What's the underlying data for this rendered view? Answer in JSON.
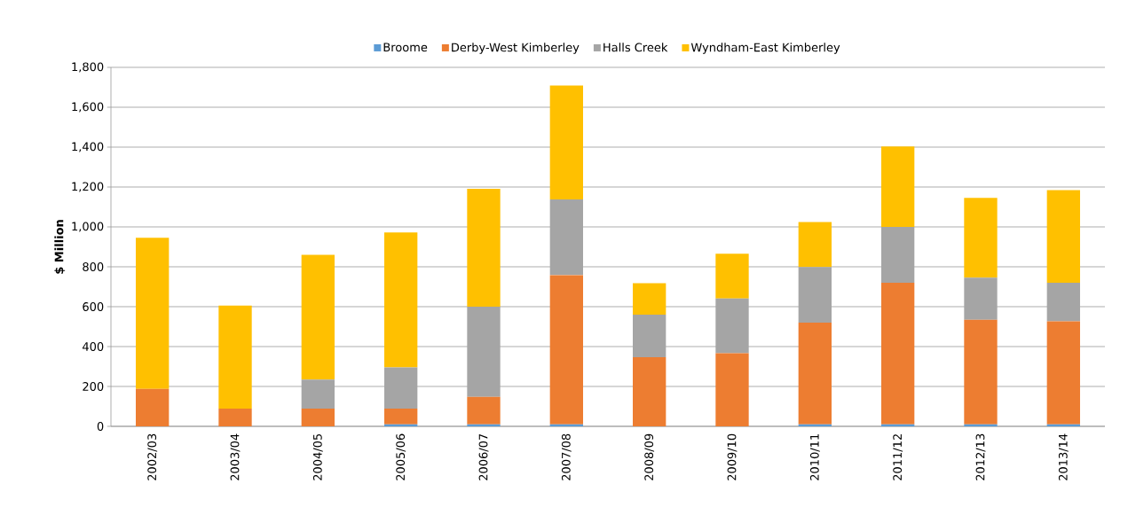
{
  "chart_data": {
    "type": "bar",
    "stacked": true,
    "ylabel": "$ Million",
    "categories": [
      "2002/03",
      "2003/04",
      "2004/05",
      "2005/06",
      "2006/07",
      "2007/08",
      "2008/09",
      "2009/10",
      "2010/11",
      "2011/12",
      "2012/13",
      "2013/14"
    ],
    "series": [
      {
        "name": "Broome",
        "color": "#5b9bd5",
        "values": [
          0,
          0,
          0,
          10,
          10,
          10,
          0,
          0,
          10,
          10,
          10,
          10
        ]
      },
      {
        "name": "Derby-West Kimberley",
        "color": "#ed7d31",
        "values": [
          188,
          89,
          89,
          79,
          138,
          749,
          347,
          367,
          510,
          710,
          524,
          517
        ]
      },
      {
        "name": "Halls Creek",
        "color": "#a5a5a5",
        "values": [
          0,
          0,
          145,
          206,
          452,
          379,
          213,
          274,
          279,
          280,
          212,
          193
        ]
      },
      {
        "name": "Wyndham-East Kimberley",
        "color": "#ffc000",
        "values": [
          757,
          517,
          626,
          677,
          591,
          571,
          158,
          225,
          225,
          403,
          400,
          464
        ]
      }
    ],
    "ylim": [
      0,
      1800
    ],
    "yticks": [
      {
        "value": 0,
        "label": "0"
      },
      {
        "value": 200,
        "label": "200"
      },
      {
        "value": 400,
        "label": "400"
      },
      {
        "value": 600,
        "label": "600"
      },
      {
        "value": 800,
        "label": "800"
      },
      {
        "value": 1000,
        "label": "1,000"
      },
      {
        "value": 1200,
        "label": "1,200"
      },
      {
        "value": 1400,
        "label": "1,400"
      },
      {
        "value": 1600,
        "label": "1,600"
      },
      {
        "value": 1800,
        "label": "1,800"
      }
    ],
    "grid": "y",
    "legend": "top"
  }
}
